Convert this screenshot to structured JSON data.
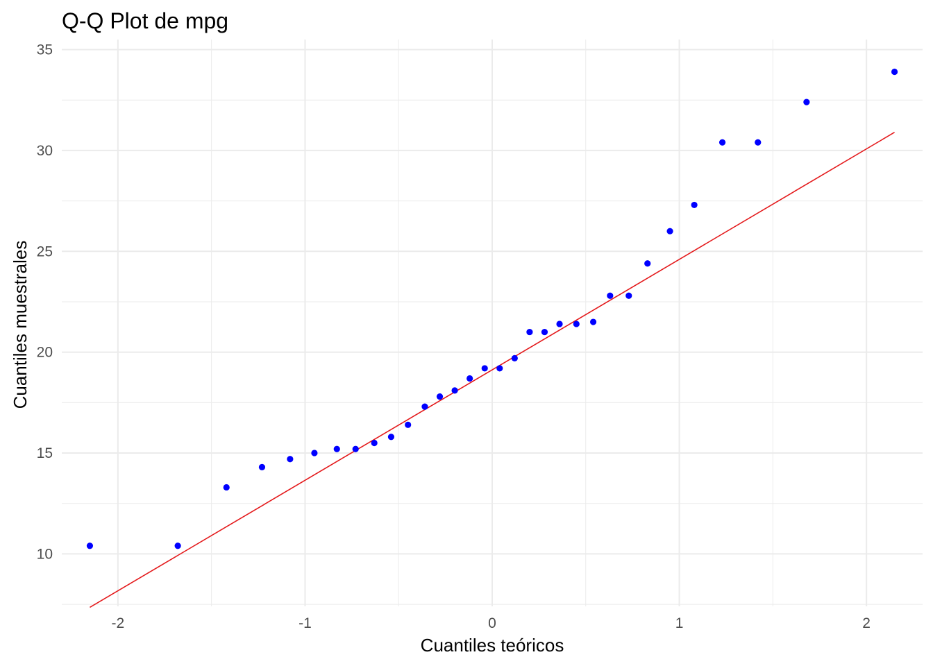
{
  "chart_data": {
    "type": "scatter",
    "title": "Q-Q Plot de mpg",
    "xlabel": "Cuantiles teóricos",
    "ylabel": "Cuantiles muestrales",
    "xlim": [
      -2.3,
      2.3
    ],
    "ylim": [
      7.4,
      35.5
    ],
    "x_ticks": [
      -2,
      -1,
      0,
      1,
      2
    ],
    "x_tick_labels": [
      "-2",
      "-1",
      "0",
      "1",
      "2"
    ],
    "y_ticks": [
      10,
      15,
      20,
      25,
      30,
      35
    ],
    "y_tick_labels": [
      "10",
      "15",
      "20",
      "25",
      "30",
      "35"
    ],
    "grid": true,
    "colors": {
      "points": "#0000FF",
      "reference_line": "#E41A1C",
      "grid": "#EBEBEB"
    },
    "points": {
      "x": [
        -2.15,
        -1.68,
        -1.42,
        -1.23,
        -1.08,
        -0.95,
        -0.83,
        -0.73,
        -0.63,
        -0.54,
        -0.45,
        -0.36,
        -0.28,
        -0.2,
        -0.12,
        -0.04,
        0.04,
        0.12,
        0.2,
        0.28,
        0.36,
        0.45,
        0.54,
        0.63,
        0.73,
        0.83,
        0.95,
        1.08,
        1.23,
        1.42,
        1.68,
        2.15
      ],
      "y": [
        10.4,
        10.4,
        13.3,
        14.3,
        14.7,
        15.0,
        15.2,
        15.2,
        15.5,
        15.8,
        16.4,
        17.3,
        17.8,
        18.1,
        18.7,
        19.2,
        19.2,
        19.7,
        21.0,
        21.0,
        21.4,
        21.4,
        21.5,
        22.8,
        22.8,
        24.4,
        26.0,
        27.3,
        30.4,
        30.4,
        32.4,
        33.9
      ]
    },
    "reference_line": {
      "x": [
        -2.15,
        2.15
      ],
      "y": [
        7.35,
        30.9
      ]
    }
  }
}
